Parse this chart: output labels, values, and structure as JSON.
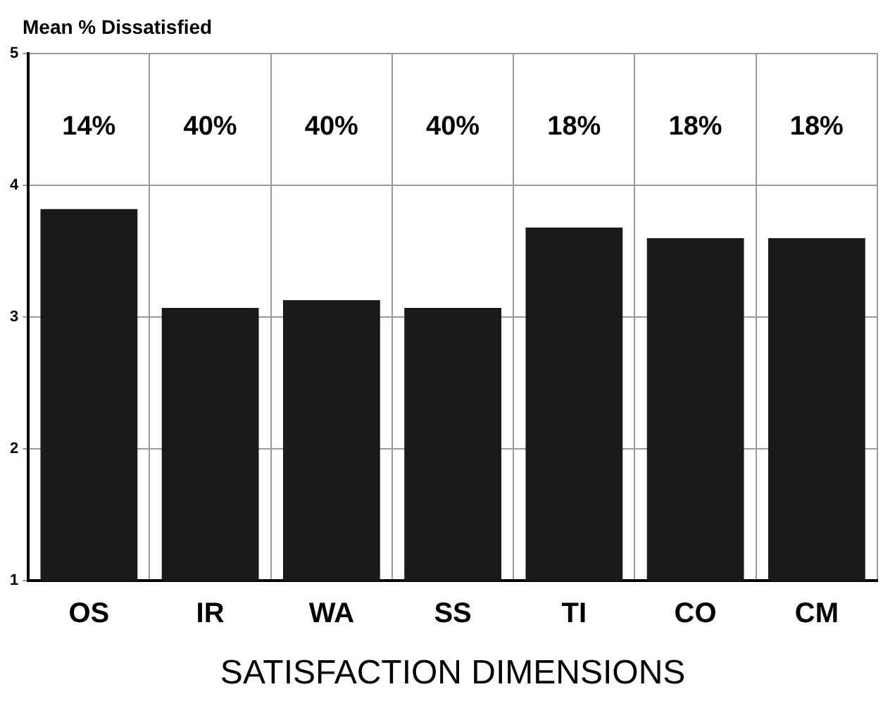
{
  "chart_data": {
    "type": "bar",
    "ylabel": "Mean % Dissatisfied",
    "xlabel": "SATISFACTION DIMENSIONS",
    "categories": [
      "OS",
      "IR",
      "WA",
      "SS",
      "TI",
      "CO",
      "CM"
    ],
    "values": [
      3.82,
      3.07,
      3.13,
      3.07,
      3.68,
      3.6,
      3.6
    ],
    "color": "#1a1a1a",
    "ylim": [
      1,
      5
    ],
    "yticks": [
      1,
      2,
      3,
      4,
      5
    ],
    "grid": true,
    "legend": false,
    "annotations": [
      "14%",
      "40%",
      "40%",
      "40%",
      "18%",
      "18%",
      "18%"
    ]
  }
}
